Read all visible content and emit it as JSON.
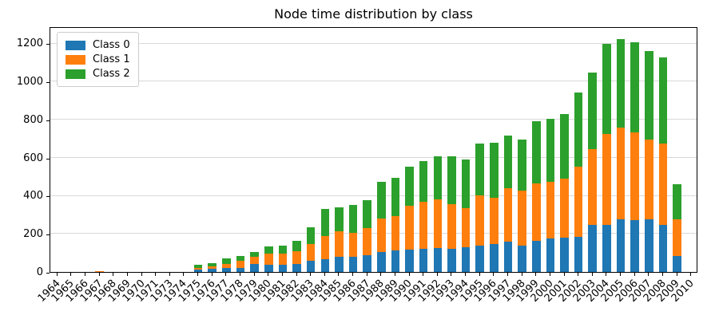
{
  "chart_data": {
    "type": "bar",
    "stacked": true,
    "title": "Node time distribution by class",
    "xlabel": "",
    "ylabel": "",
    "grid": "horizontal",
    "grid_color": "#d9d9d9",
    "legend_position": "upper left",
    "ylim": [
      0,
      1290
    ],
    "yticks": [
      0,
      200,
      400,
      600,
      800,
      1000,
      1200
    ],
    "categories": [
      "1964",
      "1965",
      "1966",
      "1967",
      "1968",
      "1969",
      "1970",
      "1971",
      "1973",
      "1974",
      "1975",
      "1976",
      "1977",
      "1978",
      "1979",
      "1980",
      "1981",
      "1982",
      "1983",
      "1984",
      "1985",
      "1986",
      "1987",
      "1988",
      "1989",
      "1990",
      "1991",
      "1992",
      "1993",
      "1994",
      "1995",
      "1996",
      "1997",
      "1998",
      "1999",
      "2000",
      "2001",
      "2002",
      "2003",
      "2004",
      "2005",
      "2006",
      "2007",
      "2008",
      "2009",
      "2010"
    ],
    "series": [
      {
        "name": "Class 0",
        "color": "#1f77b4",
        "values": [
          0,
          0,
          0,
          0,
          0,
          0,
          0,
          0,
          0,
          0,
          12,
          16,
          22,
          20,
          42,
          38,
          37,
          44,
          58,
          66,
          78,
          80,
          87,
          105,
          112,
          118,
          120,
          126,
          120,
          130,
          137,
          148,
          160,
          138,
          165,
          174,
          182,
          186,
          247,
          247,
          275,
          272,
          275,
          247,
          84,
          0
        ]
      },
      {
        "name": "Class 1",
        "color": "#ff7f0e",
        "values": [
          0,
          0,
          0,
          6,
          0,
          0,
          0,
          0,
          0,
          0,
          10,
          13,
          22,
          38,
          36,
          58,
          60,
          67,
          88,
          124,
          134,
          124,
          143,
          177,
          181,
          231,
          248,
          254,
          236,
          204,
          264,
          242,
          280,
          288,
          299,
          298,
          309,
          368,
          400,
          479,
          483,
          461,
          419,
          427,
          193,
          0
        ]
      },
      {
        "name": "Class 2",
        "color": "#2ca02c",
        "values": [
          0,
          0,
          0,
          0,
          0,
          0,
          0,
          0,
          0,
          0,
          14,
          19,
          26,
          25,
          28,
          40,
          43,
          52,
          88,
          140,
          127,
          148,
          148,
          193,
          200,
          206,
          214,
          226,
          252,
          258,
          272,
          287,
          278,
          269,
          326,
          332,
          339,
          388,
          399,
          474,
          467,
          472,
          466,
          453,
          183,
          0
        ]
      }
    ]
  }
}
